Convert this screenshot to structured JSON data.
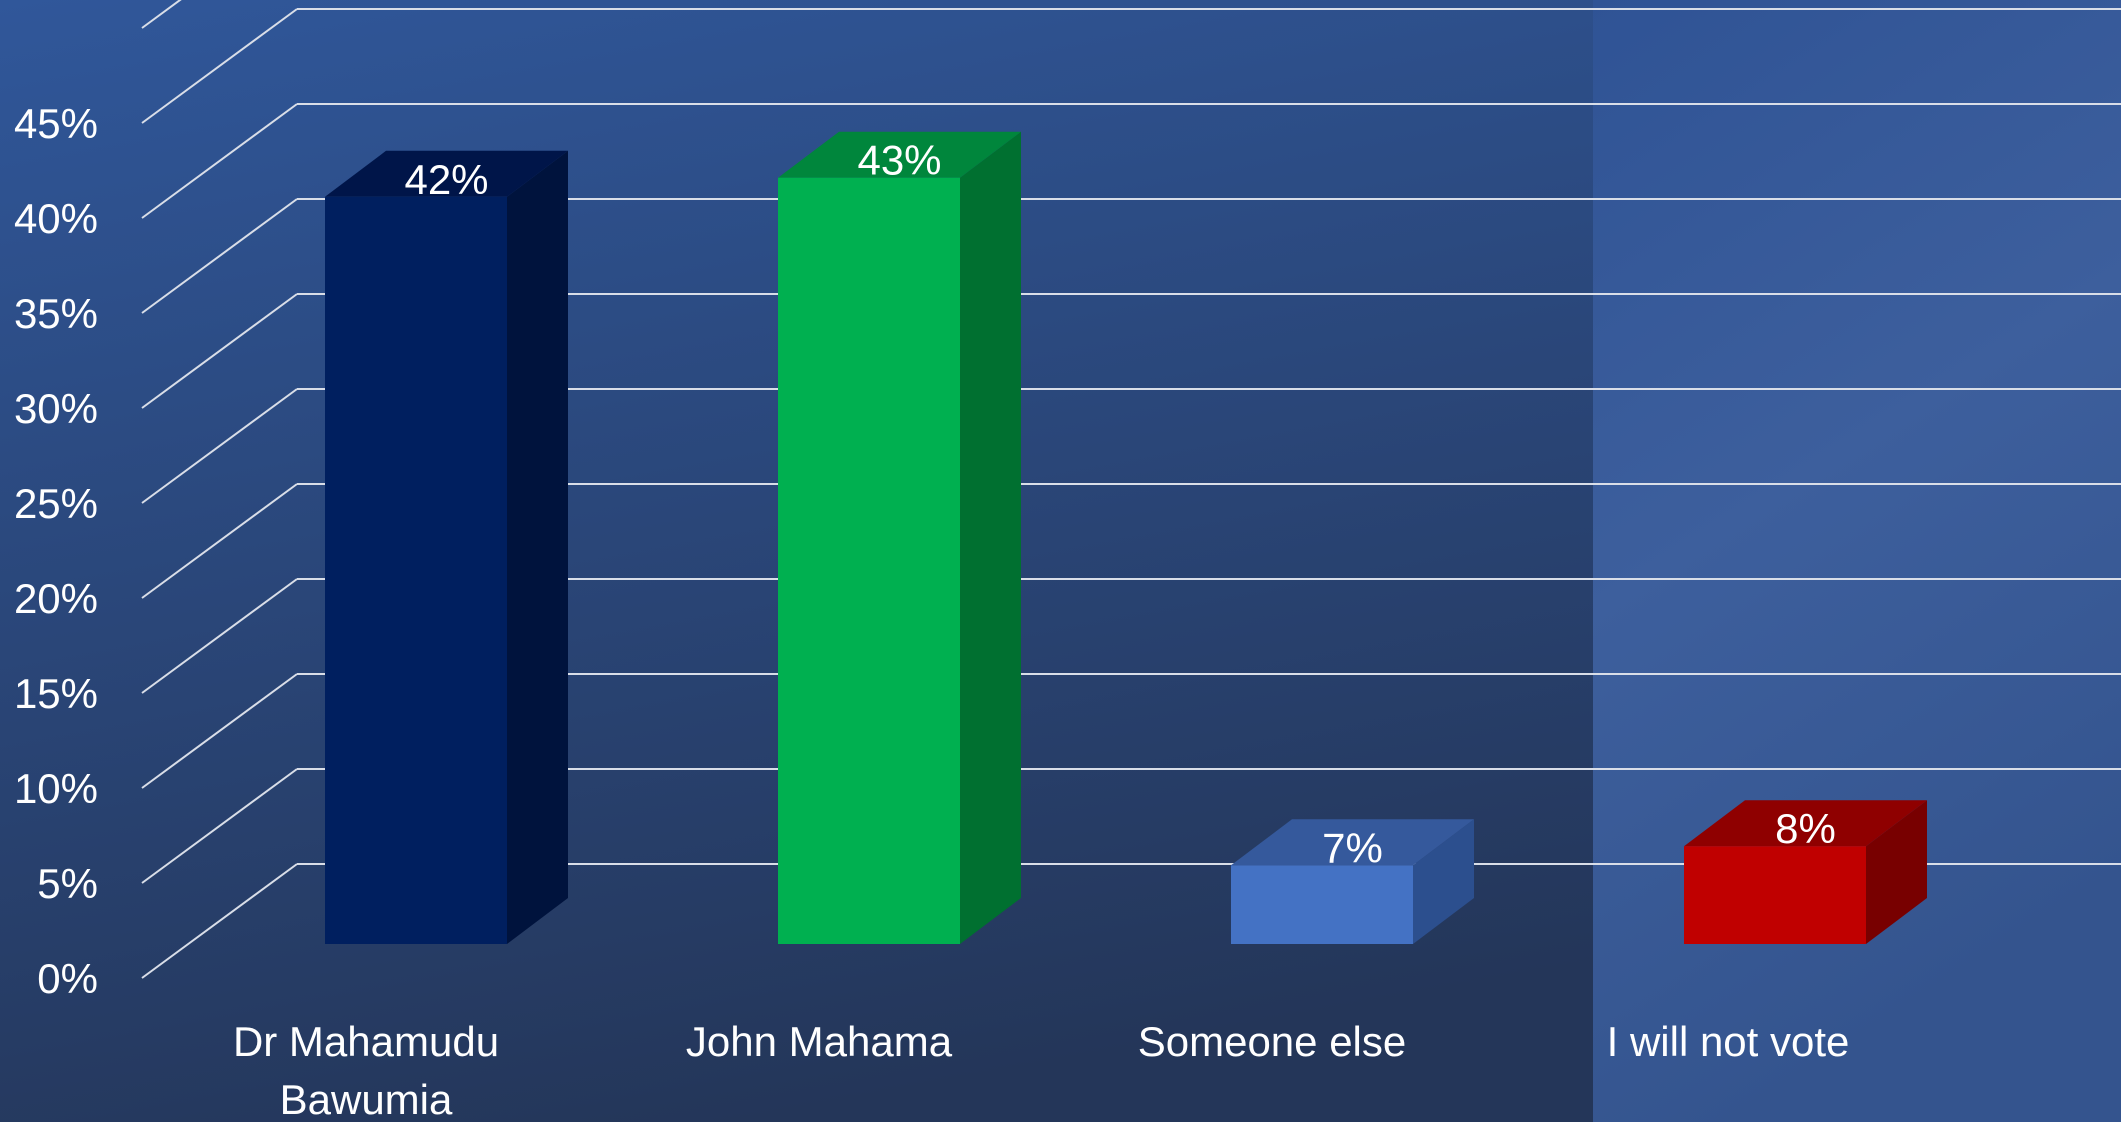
{
  "chart_data": {
    "type": "bar",
    "title": "",
    "xlabel": "",
    "ylabel": "",
    "categories": [
      [
        "Dr Mahamudu",
        "Bawumia"
      ],
      [
        "John Mahama"
      ],
      [
        "Someone else"
      ],
      [
        "I will not vote"
      ]
    ],
    "values": [
      42,
      43,
      7,
      8
    ],
    "data_labels": [
      "42%",
      "43%",
      "7%",
      "8%"
    ],
    "y_ticks": [
      "0%",
      "5%",
      "10%",
      "15%",
      "20%",
      "25%",
      "30%",
      "35%",
      "40%",
      "45%"
    ],
    "ylim": [
      0,
      50
    ],
    "grid": true,
    "legend": "none",
    "style": "3d-column",
    "colors": {
      "bar_front": [
        "#001F5F",
        "#00B050",
        "#4472C4",
        "#C00000"
      ],
      "bar_side": [
        "#00133D",
        "#007030",
        "#2C4F8E",
        "#780000"
      ],
      "bar_top": [
        "#001549",
        "#00863C",
        "#35599C",
        "#8F0000"
      ],
      "grid": "#D9DEE8",
      "text": "#FFFFFF",
      "background_top": "#30579A",
      "background_bottom": "#243659",
      "background_panel": "#3A5B99"
    }
  }
}
